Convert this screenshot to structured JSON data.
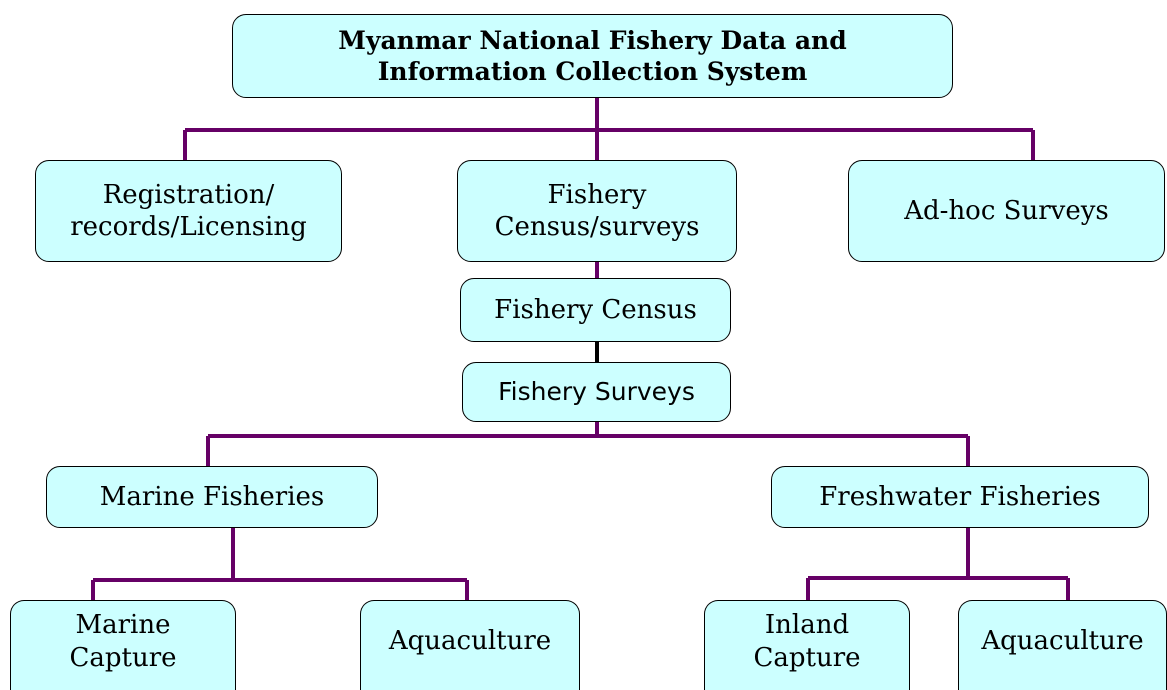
{
  "nodes": [
    {
      "lines": [
        "Myanmar National Fishery Data and",
        "Information Collection System"
      ]
    },
    {
      "lines": [
        "Registration/",
        "records/Licensing"
      ]
    },
    {
      "lines": [
        "Fishery",
        "Census/surveys"
      ]
    },
    {
      "lines": [
        "Ad-hoc Surveys"
      ]
    },
    {
      "lines": [
        "Fishery Census"
      ]
    },
    {
      "lines": [
        "Fishery Surveys"
      ]
    },
    {
      "lines": [
        "Marine Fisheries"
      ]
    },
    {
      "lines": [
        "Freshwater Fisheries"
      ]
    },
    {
      "lines": [
        "Marine",
        "Capture"
      ]
    },
    {
      "lines": [
        "Aquaculture"
      ]
    },
    {
      "lines": [
        "Inland",
        "Capture"
      ]
    },
    {
      "lines": [
        "Aquaculture"
      ]
    }
  ]
}
